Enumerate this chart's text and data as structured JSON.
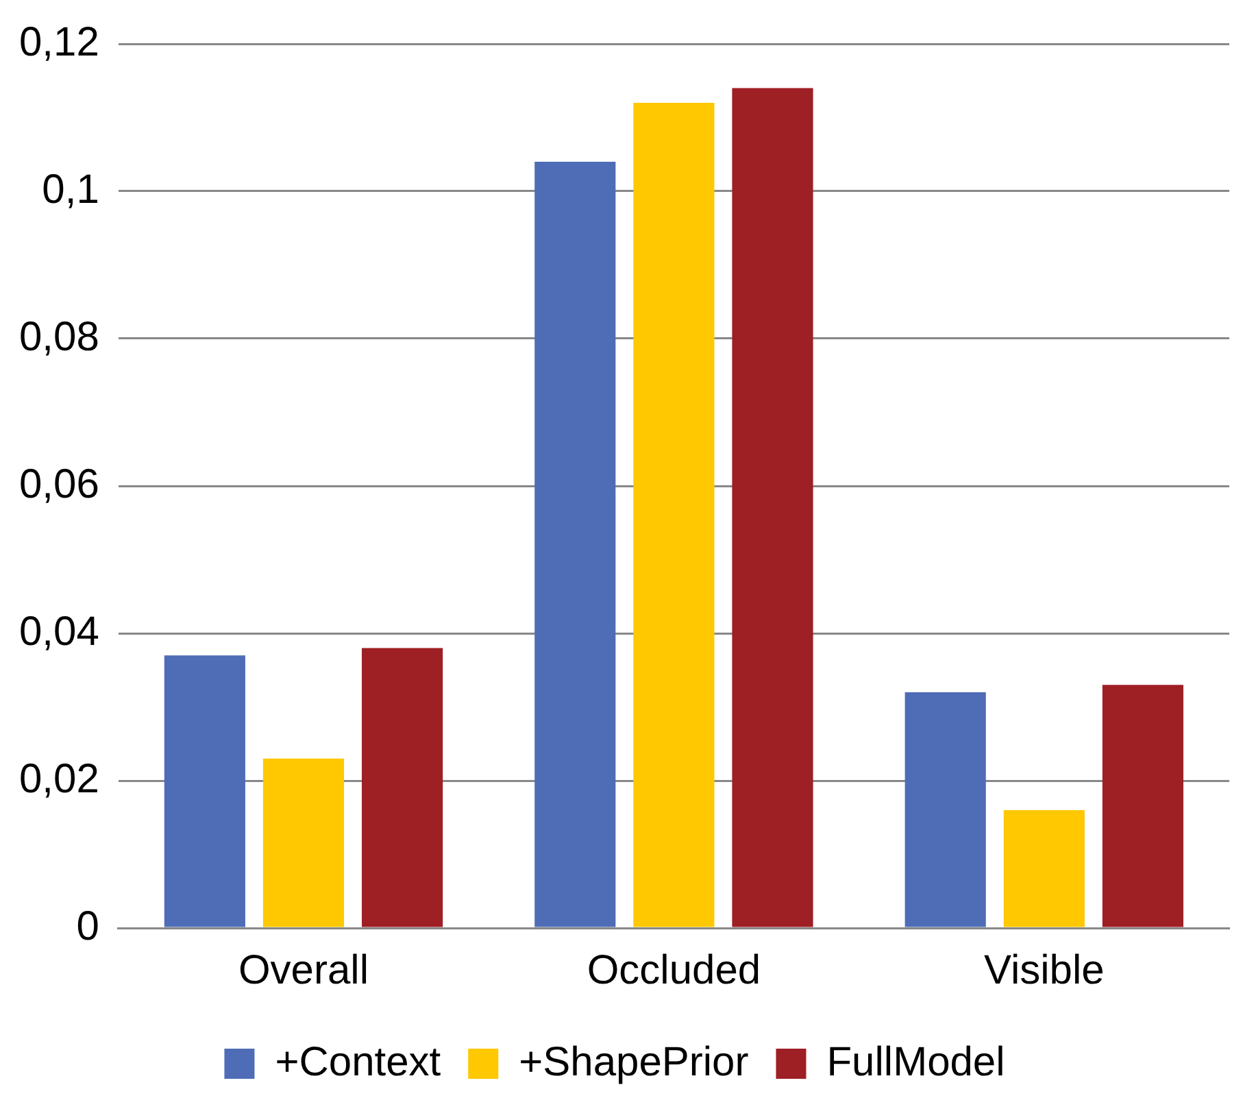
{
  "chart_data": {
    "type": "bar",
    "categories": [
      "Overall",
      "Occluded",
      "Visible"
    ],
    "series": [
      {
        "name": "+Context",
        "color": "#4f6db6",
        "values": [
          0.037,
          0.104,
          0.032
        ]
      },
      {
        "name": "+ShapePrior",
        "color": "#ffc800",
        "values": [
          0.023,
          0.112,
          0.016
        ]
      },
      {
        "name": "FullModel",
        "color": "#9e1f24",
        "values": [
          0.038,
          0.114,
          0.033
        ]
      }
    ],
    "ylim": [
      0,
      0.12
    ],
    "yticks": [
      {
        "value": 0,
        "label": "0"
      },
      {
        "value": 0.02,
        "label": "0,02"
      },
      {
        "value": 0.04,
        "label": "0,04"
      },
      {
        "value": 0.06,
        "label": "0,06"
      },
      {
        "value": 0.08,
        "label": "0,08"
      },
      {
        "value": 0.1,
        "label": "0,1"
      },
      {
        "value": 0.12,
        "label": "0,12"
      }
    ],
    "grid": "y",
    "legend": "bottom"
  }
}
